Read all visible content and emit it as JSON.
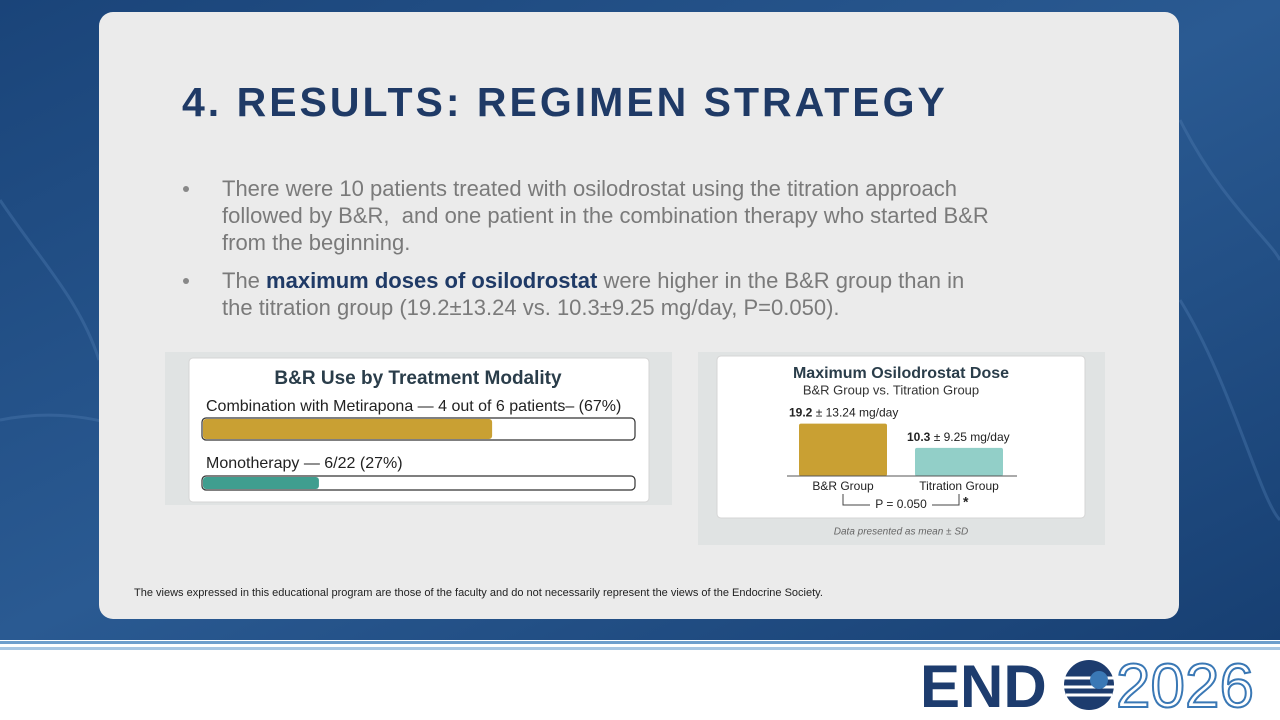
{
  "title": "4. RESULTS: REGIMEN STRATEGY",
  "bullets": [
    [
      [
        {
          "text": "There were 10 patients treated with osilodrostat using the titration approach",
          "bold": false
        }
      ],
      [
        {
          "text": "followed by B&R,  and one patient in the combination therapy who started B&R",
          "bold": false
        }
      ],
      [
        {
          "text": "from the beginning.",
          "bold": false
        }
      ]
    ],
    [
      [
        {
          "text": "The ",
          "bold": false
        },
        {
          "text": "maximum doses of osilodrostat",
          "bold": true
        },
        {
          "text": " were higher in the B&R group than in",
          "bold": false
        }
      ],
      [
        {
          "text": "the titration group (19.2±13.24 vs. 10.3±9.25 mg/day, P=0.050).",
          "bold": false
        }
      ]
    ]
  ],
  "chart_data": [
    {
      "type": "hbar",
      "title": "B&R Use by Treatment Modality",
      "categories": [
        "Combination with Metirapona — 4 out of 6 patients– (67%)",
        "Monotherapy — 6/22 (27%)"
      ],
      "values": [
        67,
        27
      ],
      "colors": [
        "#c9a033",
        "#3f9e8f"
      ],
      "xlim": [
        0,
        100
      ]
    },
    {
      "type": "bar",
      "title": "Maximum Osilodrostat Dose",
      "subtitle": "B&R Group vs. Titration Group",
      "categories": [
        "B&R Group",
        "Titration Group"
      ],
      "values": [
        19.2,
        10.3
      ],
      "value_labels": [
        "19.2 ± 13.24 mg/day",
        "10.3 ± 9.25 mg/day"
      ],
      "colors": [
        "#c9a033",
        "#92cfc8"
      ],
      "ylim": [
        0,
        22
      ],
      "annotations": [
        "P = 0.050",
        "*"
      ],
      "note": "Data presented as mean ± SD"
    }
  ],
  "footer": "The views expressed in this educational program are those of the faculty and do not necessarily represent the views of the Endocrine Society.",
  "logo": {
    "left": "END",
    "right": "2026"
  }
}
